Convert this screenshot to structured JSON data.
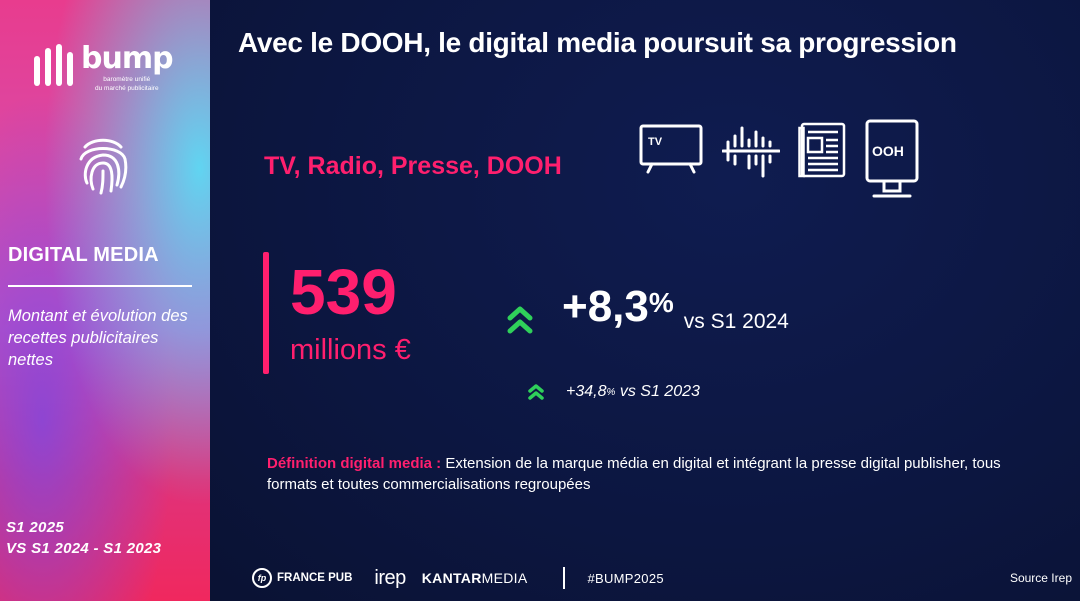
{
  "brand": {
    "name": "bump",
    "tagline_line1": "baromètre unifié",
    "tagline_line2": "du marché publicitaire"
  },
  "sidebar": {
    "section_title": "DIGITAL MEDIA",
    "subtitle": "Montant et évolution des recettes publicitaires nettes",
    "period_line1": "S1 2025",
    "period_line2": "VS S1 2024 - S1 2023"
  },
  "main": {
    "headline": "Avec le DOOH, le digital media poursuit sa progression",
    "media_label": "TV, Radio, Presse, DOOH",
    "icons": [
      "tv-icon",
      "radio-waveform-icon",
      "newspaper-icon",
      "dooh-billboard-icon"
    ],
    "tv_icon_text": "TV",
    "dooh_icon_text": "OOH",
    "amount_value": "539",
    "amount_unit": "millions €",
    "evolution_main_value": "+8,3",
    "evolution_main_sign": "%",
    "evolution_main_ref": "vs S1 2024",
    "evolution_sub_value": "+34,8",
    "evolution_sub_sign": "%",
    "evolution_sub_ref": "vs S1 2023",
    "definition_key": "Définition digital media :",
    "definition_text": "Extension de la marque média en digital et intégrant la presse digital publisher, tous formats et toutes commercialisations regroupées"
  },
  "footer": {
    "partner1_mark": "fp",
    "partner1": "FRANCE PUB",
    "partner2": "irep",
    "partner3_bold": "KANTAR",
    "partner3_rest": "MEDIA",
    "hashtag": "#BUMP2025",
    "source": "Source Irep"
  },
  "colors": {
    "accent_pink": "#ff1f6e",
    "background_navy": "#0c1640",
    "growth_green": "#2fd05a"
  }
}
